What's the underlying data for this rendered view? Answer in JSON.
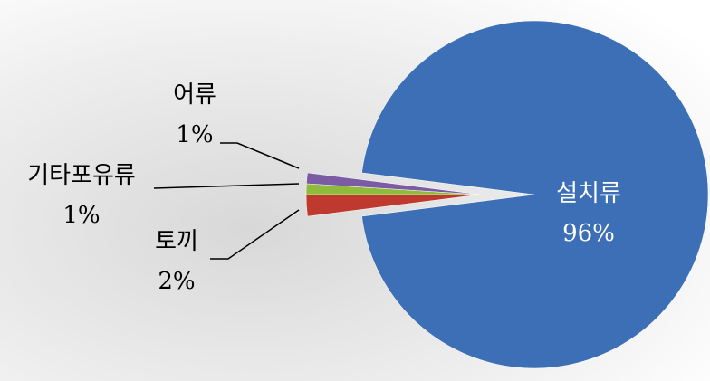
{
  "chart_data": {
    "type": "pie",
    "categories": [
      "설치류",
      "토끼",
      "기타포유류",
      "어류"
    ],
    "values": [
      96,
      2,
      1,
      1
    ],
    "value_labels": [
      "96%",
      "2%",
      "1%",
      "1%"
    ],
    "colors": [
      "#3d6fb6",
      "#c0392f",
      "#8fbb3c",
      "#7b5ba3"
    ]
  }
}
